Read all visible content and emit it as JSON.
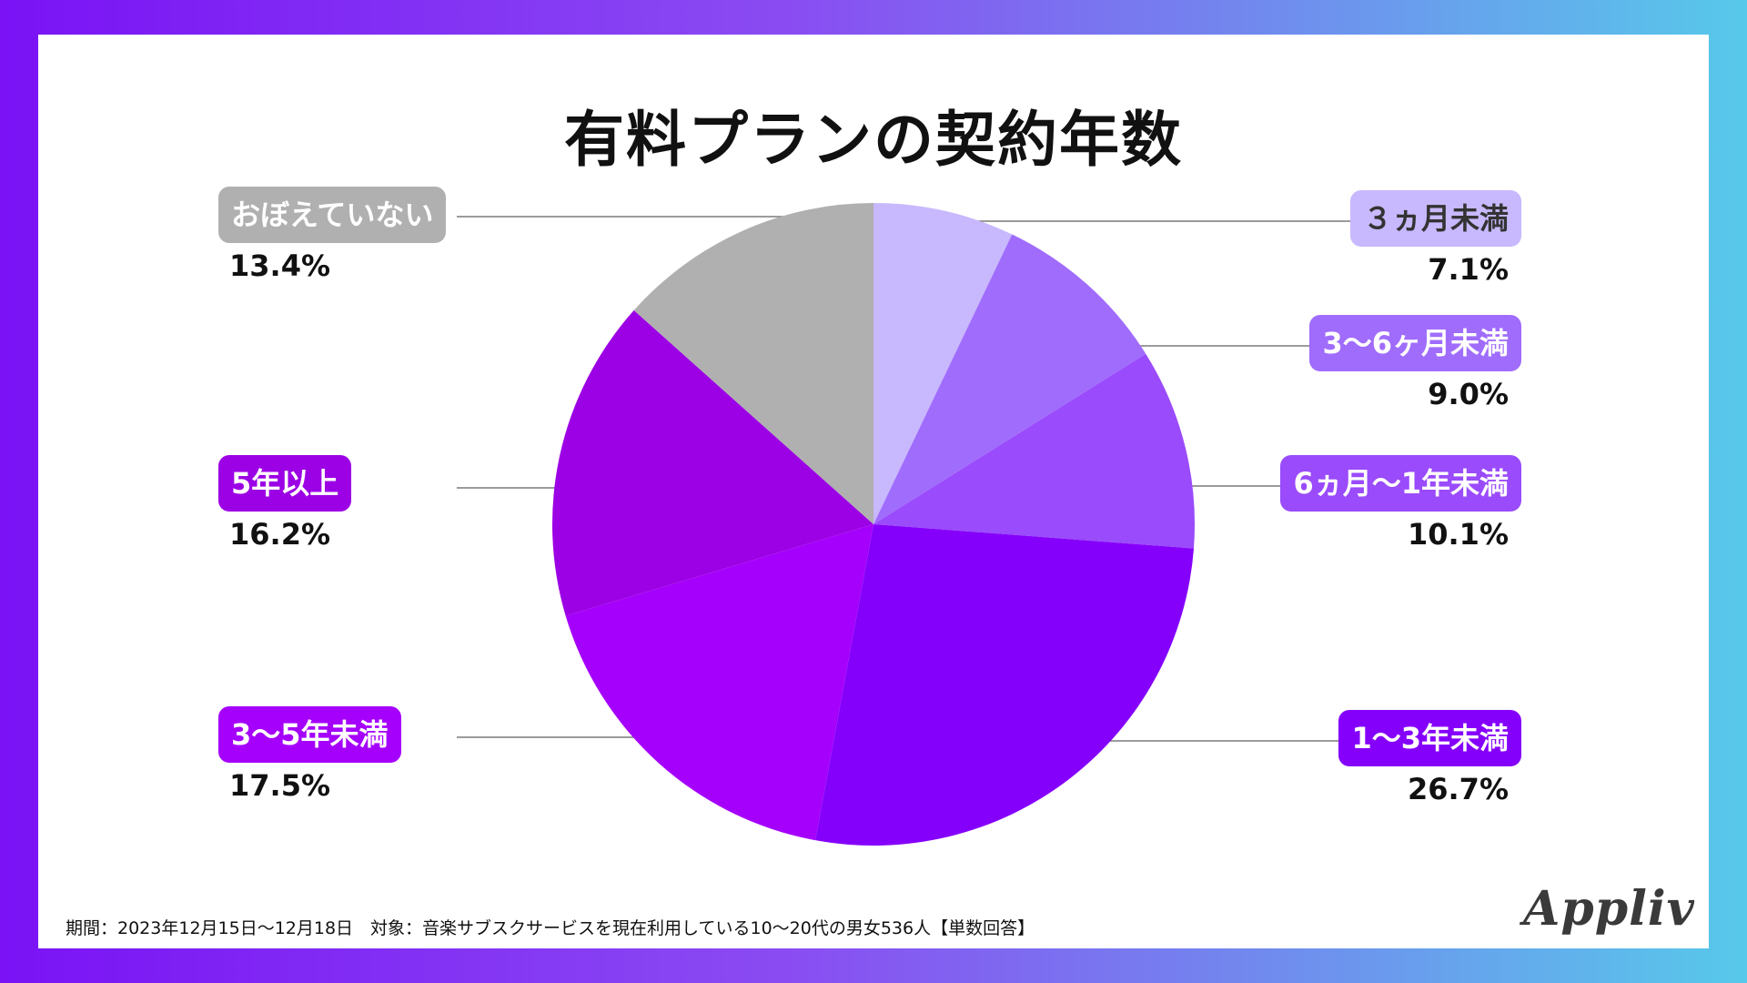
{
  "chart_data": {
    "type": "pie",
    "title": "有料プランの契約年数",
    "slices": [
      {
        "label": "３ヵ月未満",
        "value": 7.1,
        "display": "7.1%",
        "color": "#c8b8fd",
        "text_color": "#333333"
      },
      {
        "label": "3〜6ヶ月未満",
        "value": 9.0,
        "display": "9.0%",
        "color": "#a06cfc",
        "text_color": "#ffffff"
      },
      {
        "label": "6ヵ月〜1年未満",
        "value": 10.1,
        "display": "10.1%",
        "color": "#9a4bfb",
        "text_color": "#ffffff"
      },
      {
        "label": "1〜3年未満",
        "value": 26.7,
        "display": "26.7%",
        "color": "#8500fb",
        "text_color": "#ffffff"
      },
      {
        "label": "3〜5年未満",
        "value": 17.5,
        "display": "17.5%",
        "color": "#a500fb",
        "text_color": "#ffffff"
      },
      {
        "label": "5年以上",
        "value": 16.2,
        "display": "16.2%",
        "color": "#9c00e4",
        "text_color": "#ffffff"
      },
      {
        "label": "おぼえていない",
        "value": 13.4,
        "display": "13.4%",
        "color": "#b0b0b0",
        "text_color": "#ffffff"
      }
    ]
  },
  "footnote": "期間：2023年12月15日〜12月18日　対象：音楽サブスクサービスを現在利用している10〜20代の男女536人【単数回答】",
  "brand": "Appliv"
}
